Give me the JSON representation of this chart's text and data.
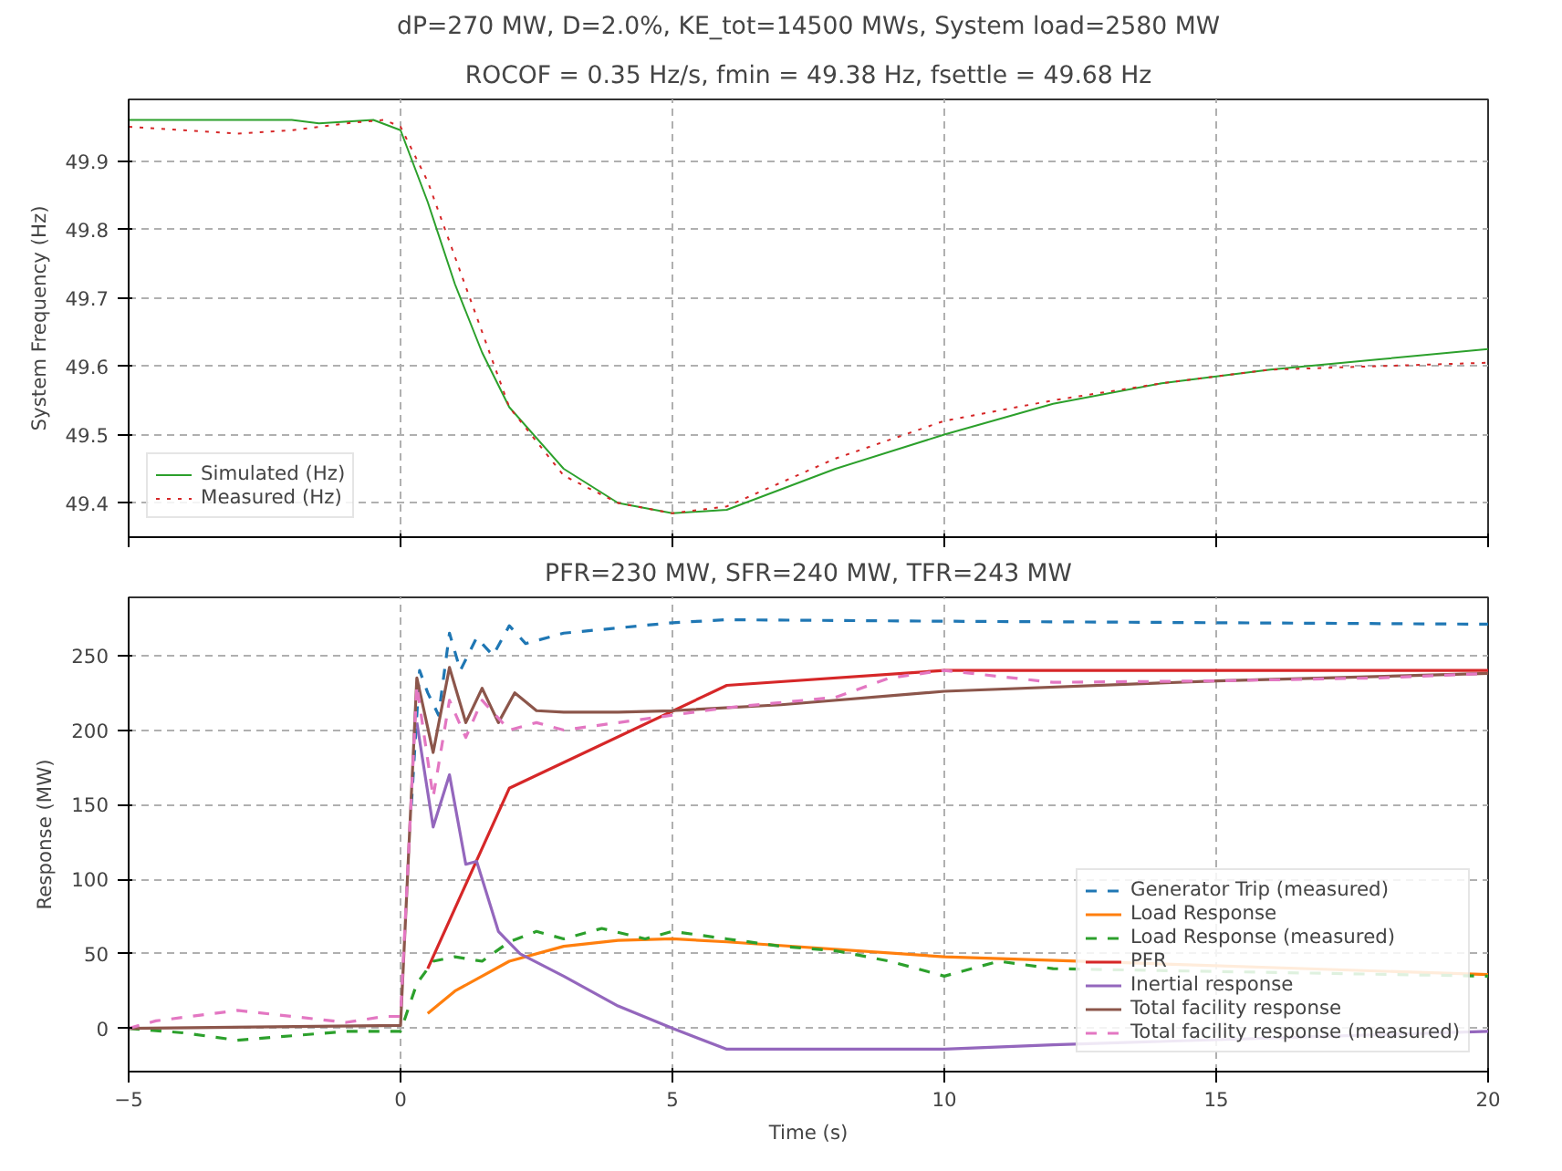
{
  "chart_data": [
    {
      "type": "line",
      "title": "dP=270 MW, D=2.0%, KE_tot=14500 MWs, System load=2580 MW",
      "subtitle": "ROCOF = 0.35 Hz/s, fmin = 49.38 Hz, fsettle = 49.68 Hz",
      "ylabel": "System Frequency (Hz)",
      "xlim": [
        -5,
        20
      ],
      "xticks": [
        -5,
        0,
        5,
        10,
        15,
        20
      ],
      "ylim": [
        49.35,
        49.99
      ],
      "yticks": [
        49.4,
        49.5,
        49.6,
        49.7,
        49.8,
        49.9
      ],
      "tick_labels": "y",
      "grid": true,
      "legend": "bottom left",
      "series": [
        {
          "name": "Simulated (Hz)",
          "color": "#2ca02c",
          "line_style": "solid",
          "x": [
            -5,
            -2,
            -1.5,
            -0.5,
            0,
            0.5,
            1,
            1.5,
            2,
            3,
            4,
            5,
            6,
            7,
            8,
            10,
            12,
            14,
            16,
            18,
            20
          ],
          "values": [
            49.96,
            49.96,
            49.955,
            49.96,
            49.945,
            49.84,
            49.72,
            49.62,
            49.54,
            49.45,
            49.4,
            49.385,
            49.39,
            49.42,
            49.45,
            49.5,
            49.545,
            49.575,
            49.595,
            49.61,
            49.625
          ]
        },
        {
          "name": "Measured (Hz)",
          "color": "#d62728",
          "line_style": "dotted",
          "x": [
            -5,
            -3,
            -2,
            -1,
            -0.3,
            0,
            0.5,
            1,
            1.5,
            2,
            3,
            4,
            5,
            6,
            7,
            8,
            10,
            12,
            14,
            16,
            18,
            20
          ],
          "values": [
            49.95,
            49.94,
            49.945,
            49.955,
            49.96,
            49.95,
            49.87,
            49.76,
            49.65,
            49.54,
            49.44,
            49.4,
            49.385,
            49.395,
            49.43,
            49.465,
            49.52,
            49.55,
            49.575,
            49.595,
            49.6,
            49.605
          ]
        }
      ]
    },
    {
      "type": "line",
      "title": "PFR=230 MW, SFR=240 MW, TFR=243 MW",
      "xlabel": "Time (s)",
      "ylabel": "Response (MW)",
      "xlim": [
        -5,
        20
      ],
      "xticks": [
        {
          "value": -5,
          "label": "−5"
        },
        0,
        5,
        10,
        15,
        20
      ],
      "ylim": [
        -29,
        289
      ],
      "yticks": [
        0,
        50,
        100,
        150,
        200,
        250
      ],
      "grid": true,
      "legend": "bottom right",
      "series": [
        {
          "name": "Generator Trip (measured)",
          "color": "#1f77b4",
          "line_style": "dashed",
          "x": [
            0.2,
            0.35,
            0.5,
            0.7,
            0.9,
            1.1,
            1.4,
            1.7,
            2,
            2.3,
            3,
            5,
            6,
            10,
            15,
            20
          ],
          "values": [
            150,
            240,
            225,
            210,
            265,
            240,
            262,
            250,
            270,
            258,
            265,
            272,
            274,
            273,
            272,
            271
          ]
        },
        {
          "name": "Load Response",
          "color": "#ff7f0e",
          "line_style": "solid",
          "x": [
            0.5,
            1,
            2,
            3,
            4,
            5,
            6,
            10,
            20
          ],
          "values": [
            10,
            25,
            45,
            55,
            59,
            60,
            58,
            48,
            36
          ]
        },
        {
          "name": "Load Response (measured)",
          "color": "#2ca02c",
          "line_style": "dashed",
          "x": [
            -5,
            -4,
            -3,
            -2,
            -1,
            0,
            0.3,
            0.6,
            1,
            1.5,
            2,
            2.5,
            3,
            3.7,
            4.5,
            5,
            6,
            7,
            8,
            9,
            10,
            11,
            12,
            20
          ],
          "values": [
            0,
            -3,
            -8,
            -5,
            -2,
            -2,
            30,
            45,
            48,
            45,
            58,
            65,
            60,
            67,
            60,
            65,
            60,
            55,
            52,
            45,
            35,
            45,
            40,
            35
          ]
        },
        {
          "name": "PFR",
          "color": "#d62728",
          "line_style": "solid",
          "x": [
            0.5,
            2,
            6,
            10,
            20
          ],
          "values": [
            40,
            161,
            230,
            240,
            240
          ]
        },
        {
          "name": "Inertial response",
          "color": "#9467bd",
          "line_style": "solid",
          "x": [
            0.3,
            0.6,
            0.9,
            1.2,
            1.4,
            1.8,
            2.2,
            3,
            4,
            5,
            6,
            8,
            10,
            12,
            20
          ],
          "values": [
            205,
            135,
            170,
            110,
            112,
            65,
            50,
            35,
            15,
            0,
            -14,
            -14,
            -14,
            -11,
            -2
          ]
        },
        {
          "name": "Total facility response",
          "color": "#8c564b",
          "line_style": "solid",
          "x": [
            -5,
            0,
            0.3,
            0.6,
            0.9,
            1.2,
            1.5,
            1.8,
            2.1,
            2.5,
            3,
            4,
            5,
            7,
            10,
            15,
            20
          ],
          "values": [
            0,
            2,
            235,
            185,
            242,
            205,
            228,
            205,
            225,
            213,
            212,
            212,
            213,
            217,
            226,
            233,
            238
          ]
        },
        {
          "name": "Total facility response (measured)",
          "color": "#e377c2",
          "line_style": "dashed",
          "x": [
            -5,
            -4.5,
            -3,
            -2,
            -1,
            -0.3,
            0,
            0.3,
            0.6,
            0.9,
            1.2,
            1.5,
            2,
            2.5,
            3,
            4,
            5,
            6,
            8,
            9,
            10,
            12,
            15,
            18,
            20
          ],
          "values": [
            0,
            5,
            12,
            8,
            4,
            8,
            8,
            230,
            155,
            220,
            195,
            220,
            200,
            205,
            200,
            205,
            210,
            215,
            222,
            235,
            240,
            232,
            233,
            235,
            238
          ]
        }
      ]
    }
  ]
}
